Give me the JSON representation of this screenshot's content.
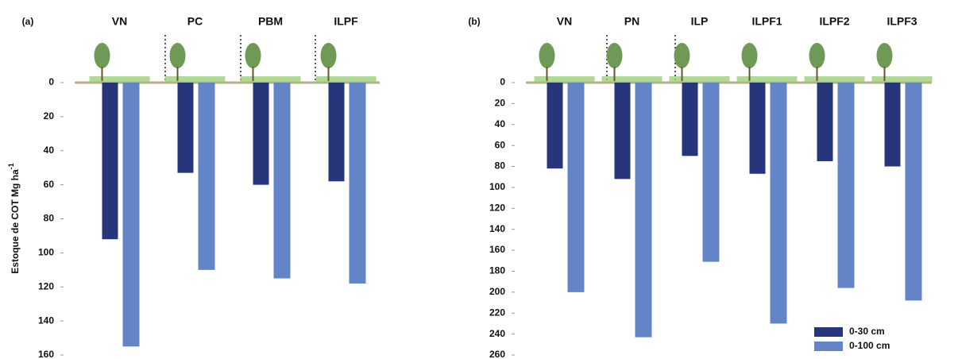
{
  "chart_data": [
    {
      "type": "bar",
      "panel_label": "(a)",
      "y_label": "Estoque de COT Mg ha",
      "y_label_sup": "-1",
      "categories": [
        "VN",
        "PC",
        "PBM",
        "ILPF"
      ],
      "series": [
        {
          "color": "#27357a",
          "values": [
            92,
            53,
            60,
            58
          ]
        },
        {
          "color": "#6384c6",
          "values": [
            155,
            110,
            115,
            118
          ]
        }
      ],
      "ylim": [
        0,
        160
      ],
      "yticks": [
        0,
        20,
        40,
        60,
        80,
        100,
        120,
        140,
        160
      ],
      "y_inverted": true
    },
    {
      "type": "bar",
      "panel_label": "(b)",
      "categories": [
        "VN",
        "PN",
        "ILP",
        "ILPF1",
        "ILPF2",
        "ILPF3"
      ],
      "series": [
        {
          "name": "0-30 cm",
          "color": "#27357a",
          "values": [
            82,
            92,
            70,
            87,
            75,
            80
          ]
        },
        {
          "name": "0-100 cm",
          "color": "#6384c6",
          "values": [
            200,
            243,
            171,
            230,
            196,
            208
          ]
        }
      ],
      "ylim": [
        0,
        260
      ],
      "yticks": [
        0,
        20,
        40,
        60,
        80,
        100,
        120,
        140,
        160,
        180,
        200,
        220,
        240,
        260
      ],
      "y_inverted": true,
      "legend": "lower right"
    }
  ]
}
